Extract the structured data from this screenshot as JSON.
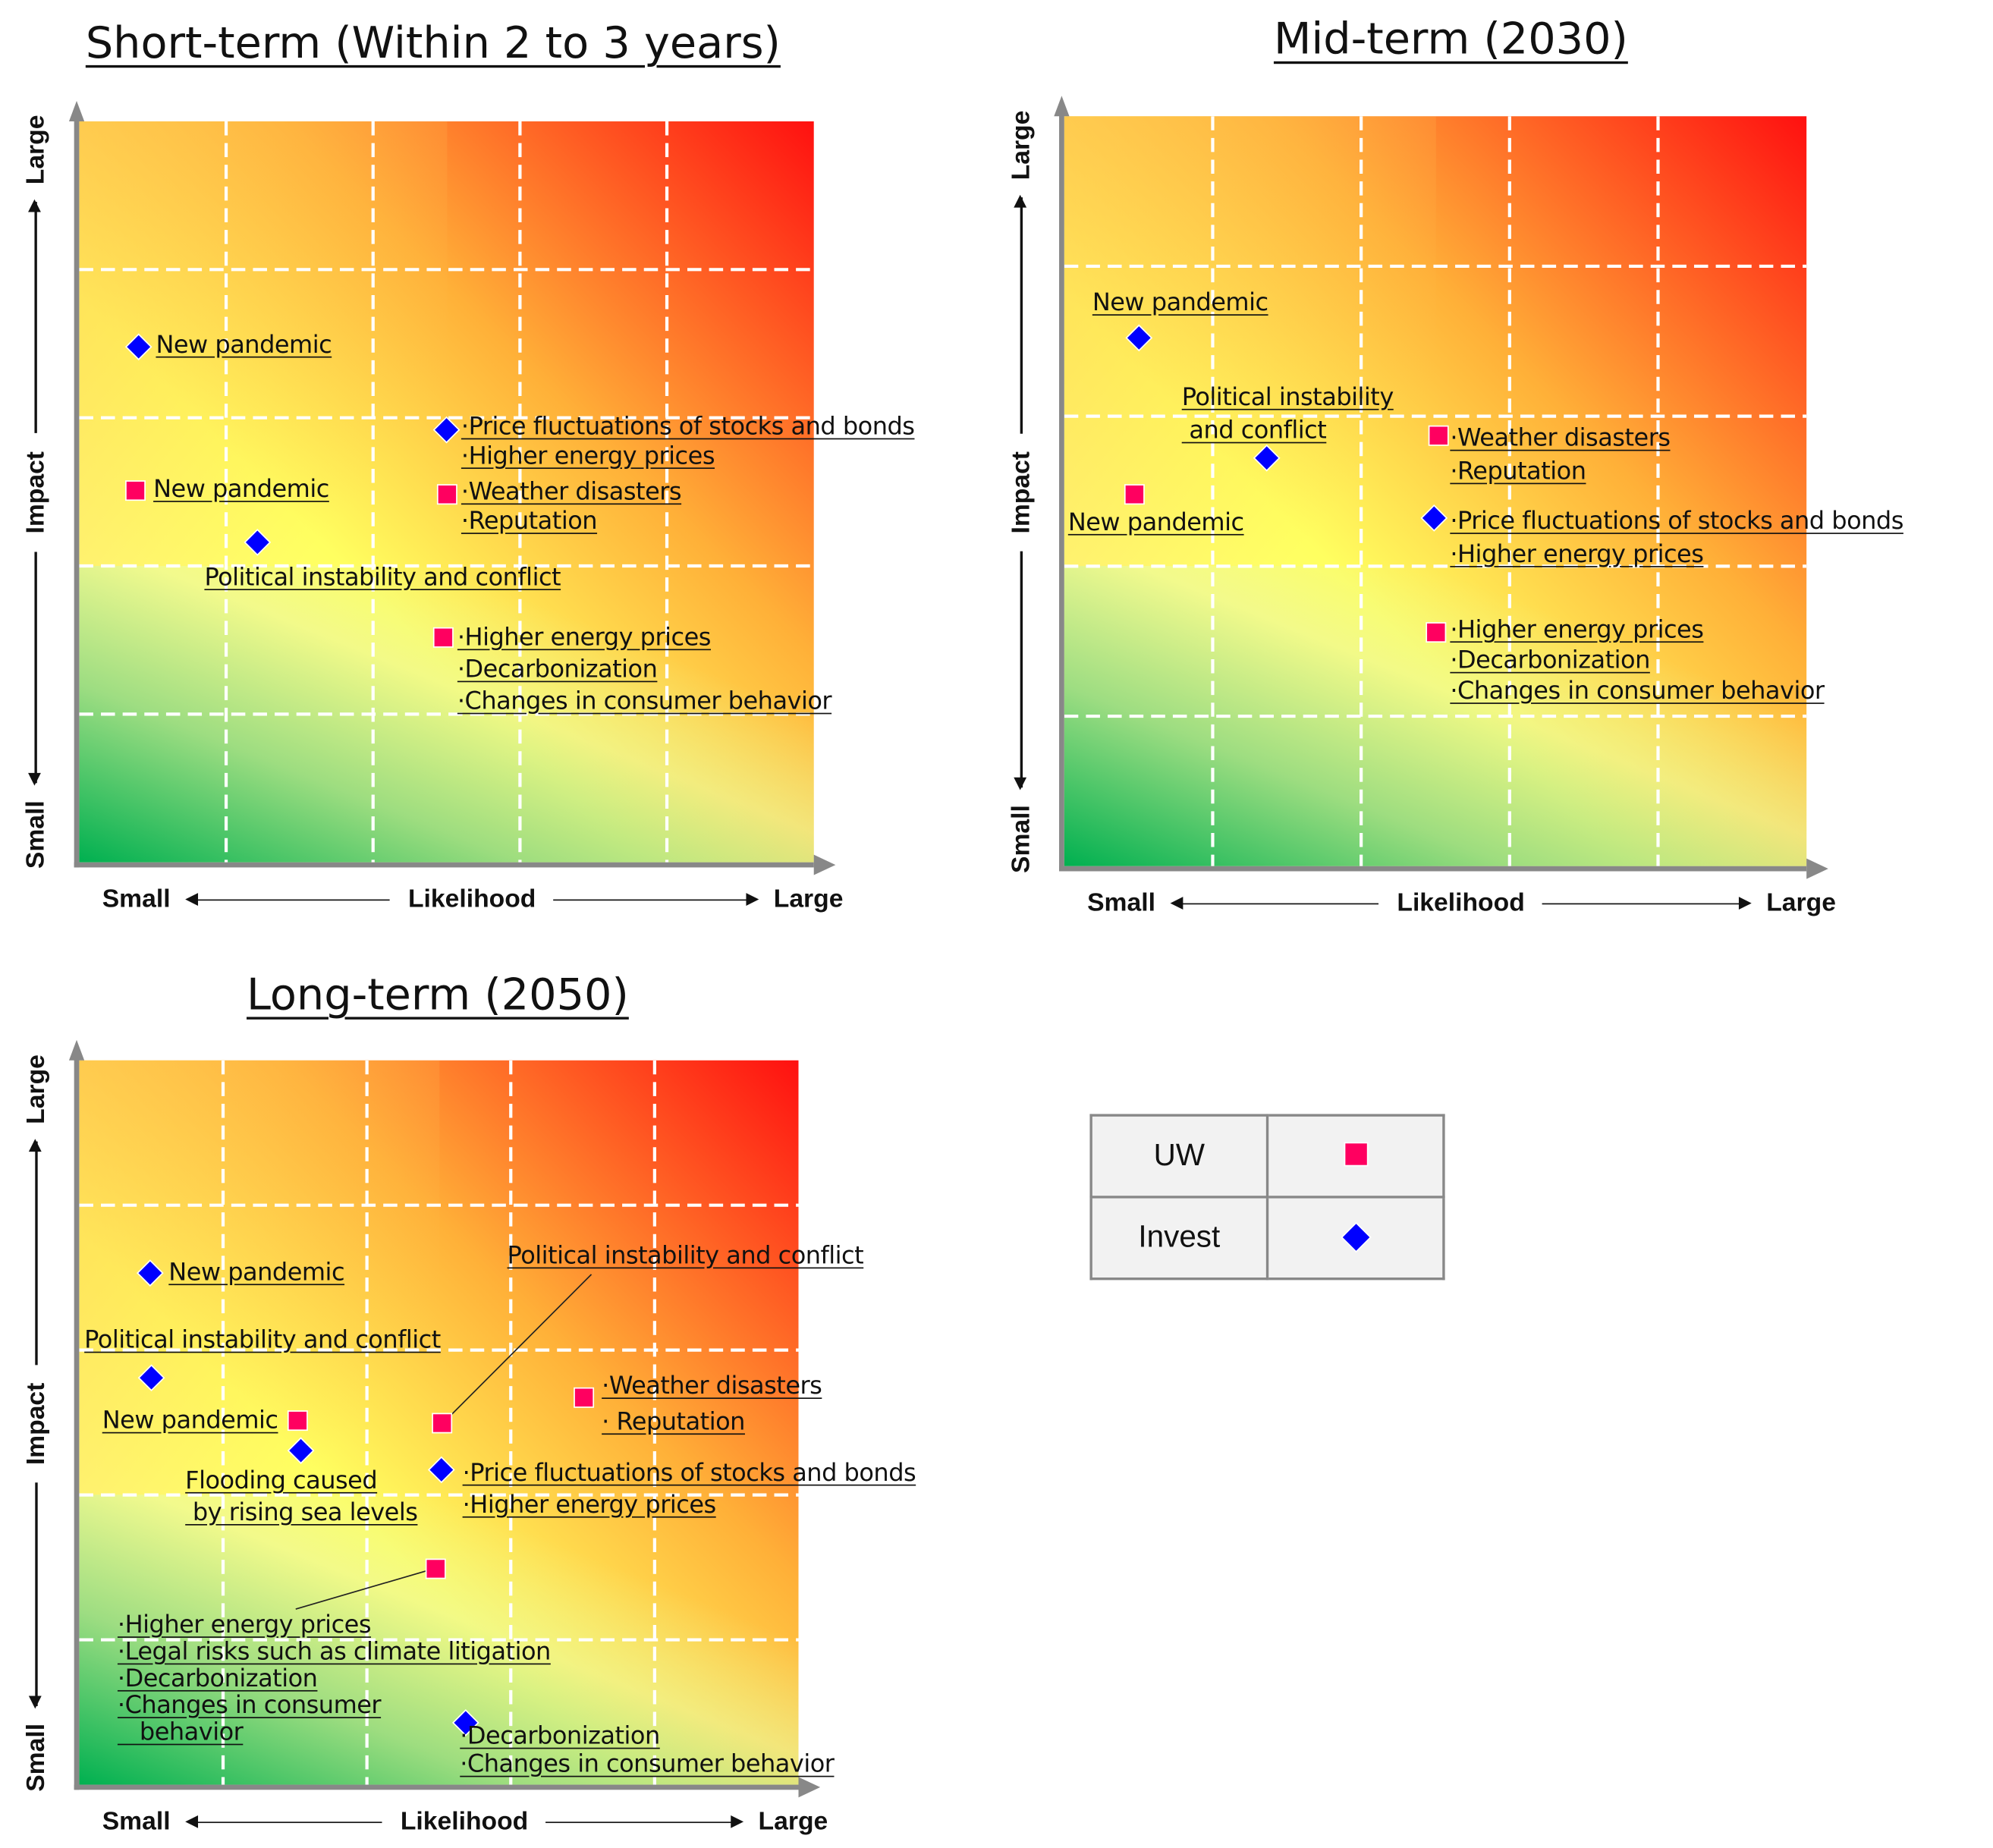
{
  "colors": {
    "uw": "#ff0060",
    "invest": "#0000ff",
    "grid": "#ffffff",
    "axis": "#888888"
  },
  "legend": {
    "rows": [
      {
        "label": "UW",
        "marker": "square",
        "color": "#ff0060"
      },
      {
        "label": "Invest",
        "marker": "diamond",
        "color": "#0000ff"
      }
    ]
  },
  "chart_data": [
    {
      "type": "scatter",
      "title": "Short-term (Within 2 to 3 years)",
      "xlabel": "Likelihood",
      "ylabel": "Impact",
      "x_low": "Small",
      "x_high": "Large",
      "y_low": "Small",
      "y_high": "Large",
      "xlim": [
        0,
        5
      ],
      "ylim": [
        0,
        5
      ],
      "grid": "5x5 dashed",
      "background": "heatmap green (bottom-left) to yellow to red (top-right)",
      "points": [
        {
          "series": "Invest",
          "x": 0.4,
          "y": 3.48,
          "label": [
            "New pandemic"
          ]
        },
        {
          "series": "UW",
          "x": 0.38,
          "y": 2.51,
          "label": [
            "New pandemic"
          ]
        },
        {
          "series": "Invest",
          "x": 1.21,
          "y": 2.16,
          "label": [
            "Political instability and conflict"
          ]
        },
        {
          "series": "Invest",
          "x": 2.5,
          "y": 2.92,
          "label": [
            "·Price fluctuations of stocks and bonds",
            "·Higher energy prices"
          ]
        },
        {
          "series": "UW",
          "x": 2.5,
          "y": 2.48,
          "label": [
            "·Weather disasters",
            "·Reputation"
          ]
        },
        {
          "series": "UW",
          "x": 2.48,
          "y": 1.52,
          "label": [
            "·Higher energy prices",
            "·Decarbonization",
            "·Changes in consumer behavior"
          ]
        }
      ]
    },
    {
      "type": "scatter",
      "title": "Mid-term (2030)",
      "xlabel": "Likelihood",
      "ylabel": "Impact",
      "x_low": "Small",
      "x_high": "Large",
      "y_low": "Small",
      "y_high": "Large",
      "xlim": [
        0,
        5
      ],
      "ylim": [
        0,
        5
      ],
      "grid": "5x5 dashed",
      "background": "heatmap green (bottom-left) to yellow to red (top-right)",
      "points": [
        {
          "series": "Invest",
          "x": 0.5,
          "y": 3.52,
          "label": [
            "New pandemic"
          ]
        },
        {
          "series": "Invest",
          "x": 1.36,
          "y": 2.72,
          "label": [
            "Political instability",
            " and conflict"
          ]
        },
        {
          "series": "UW",
          "x": 0.47,
          "y": 2.48,
          "label": [
            "New pandemic"
          ]
        },
        {
          "series": "UW",
          "x": 2.52,
          "y": 2.87,
          "label": [
            "·Weather disasters",
            "·Reputation"
          ]
        },
        {
          "series": "Invest",
          "x": 2.49,
          "y": 2.32,
          "label": [
            "·Price fluctuations of stocks and bonds",
            "·Higher energy prices"
          ]
        },
        {
          "series": "UW",
          "x": 2.5,
          "y": 1.56,
          "label": [
            "·Higher energy prices",
            "·Decarbonization",
            "·Changes in consumer behavior"
          ]
        }
      ]
    },
    {
      "type": "scatter",
      "title": "Long-term (2050)",
      "xlabel": "Likelihood",
      "ylabel": "Impact",
      "x_low": "Small",
      "x_high": "Large",
      "y_low": "Small",
      "y_high": "Large",
      "xlim": [
        0,
        5
      ],
      "ylim": [
        0,
        5
      ],
      "grid": "5x5 dashed",
      "background": "heatmap green (bottom-left) to yellow to red (top-right)",
      "points": [
        {
          "series": "Invest",
          "x": 0.49,
          "y": 3.53,
          "label": [
            "New pandemic"
          ]
        },
        {
          "series": "Invest",
          "x": 0.5,
          "y": 2.81,
          "label": [
            "Political instability and conflict"
          ]
        },
        {
          "series": "UW",
          "x": 1.52,
          "y": 2.51,
          "label": [
            "New pandemic"
          ]
        },
        {
          "series": "Invest",
          "x": 1.54,
          "y": 2.31,
          "label": [
            "Flooding caused",
            " by rising sea levels"
          ]
        },
        {
          "series": "UW",
          "x": 2.52,
          "y": 2.5,
          "label": [
            "Political instability and conflict"
          ]
        },
        {
          "series": "UW",
          "x": 3.51,
          "y": 2.67,
          "label": [
            "·Weather disasters",
            "· Reputation"
          ]
        },
        {
          "series": "Invest",
          "x": 2.52,
          "y": 2.17,
          "label": [
            "·Price fluctuations of stocks and bonds",
            "·Higher energy prices"
          ]
        },
        {
          "series": "UW",
          "x": 2.48,
          "y": 1.49,
          "label": [
            "·Higher energy prices",
            "·Legal risks such as climate litigation",
            "·Decarbonization",
            "·Changes in consumer",
            "   behavior"
          ]
        },
        {
          "series": "Invest",
          "x": 2.69,
          "y": 0.43,
          "label": [
            "·Decarbonization",
            "·Changes in consumer behavior"
          ]
        }
      ]
    }
  ]
}
